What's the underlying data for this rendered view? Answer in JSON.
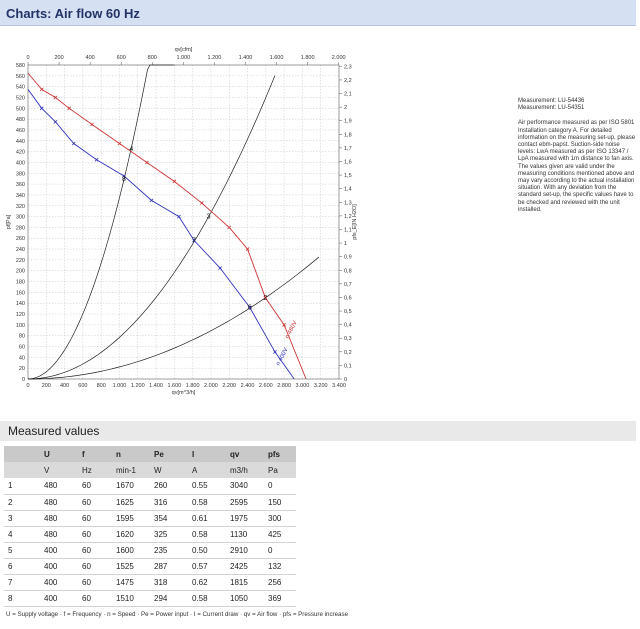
{
  "header": {
    "title": "Charts: Air flow 60 Hz"
  },
  "notes": {
    "measurements": [
      "Measurement: LU-54436",
      "Measurement: LU-54351"
    ],
    "description": "Air performance measured as per ISO 5801 Installation category A. For detailed information on the measuring set-up, please contact ebm-papst. Suction-side noise levels: LwA measured as per ISO 13347 / LpA measured with 1m distance to fan axis. The values given are valid under the measuring conditions mentioned above and may vary according to the actual installation situation. With any deviation from the standard set-up, the specific values have to be checked and reviewed with the unit installed."
  },
  "chart_data": {
    "type": "line",
    "xlabel": "qv[m^3/h]",
    "ylabel": "pf[Pa]",
    "x_top_label": "qv[cfm]",
    "y_right_label": "pfs_E[IN H2O]",
    "xlim": [
      0,
      3400
    ],
    "ylim": [
      0,
      580
    ],
    "x_ticks": [
      "0",
      "200",
      "400",
      "600",
      "800",
      "1.000",
      "1.200",
      "1.400",
      "1.600",
      "1.800",
      "2.000",
      "2.200",
      "2.400",
      "2.600",
      "2.800",
      "3.000",
      "3.200",
      "3.400"
    ],
    "x_top_ticks": [
      "0",
      "200",
      "400",
      "600",
      "800",
      "1.000",
      "1.200",
      "1.400",
      "1.600",
      "1.800",
      "2.000"
    ],
    "y_ticks": [
      "0",
      "20",
      "40",
      "60",
      "80",
      "100",
      "120",
      "140",
      "160",
      "180",
      "200",
      "220",
      "240",
      "260",
      "280",
      "300",
      "320",
      "340",
      "360",
      "380",
      "400",
      "420",
      "440",
      "460",
      "480",
      "500",
      "520",
      "540",
      "560",
      "580"
    ],
    "y_right_ticks": [
      "0",
      "0,1",
      "0,2",
      "0,3",
      "0,4",
      "0,5",
      "0,6",
      "0,7",
      "0,8",
      "0,9",
      "1",
      "1,1",
      "1,2",
      "1,3",
      "1,4",
      "1,5",
      "1,6",
      "1,7",
      "1,8",
      "1,9",
      "2",
      "2,1",
      "2,2",
      "2,3"
    ],
    "series": [
      {
        "name": "n 480V",
        "color": "#cc3333",
        "x": [
          0,
          150,
          300,
          450,
          700,
          1000,
          1300,
          1600,
          1900,
          2200,
          2400,
          2595,
          2800,
          3040
        ],
        "y": [
          565,
          535,
          520,
          500,
          470,
          435,
          400,
          365,
          325,
          280,
          240,
          150,
          100,
          0
        ]
      },
      {
        "name": "n 400V",
        "color": "#3333bb",
        "x": [
          0,
          150,
          300,
          500,
          750,
          1050,
          1350,
          1650,
          1815,
          2100,
          2425,
          2700,
          2910
        ],
        "y": [
          535,
          500,
          475,
          435,
          405,
          375,
          330,
          300,
          256,
          205,
          132,
          50,
          0
        ]
      }
    ],
    "system_curves": [
      {
        "x": [
          0,
          1050,
          1600
        ],
        "y": [
          0,
          369,
          580
        ]
      },
      {
        "x": [
          0,
          1975,
          2700
        ],
        "y": [
          0,
          300,
          580
        ]
      },
      {
        "x": [
          0,
          2595,
          3180
        ],
        "y": [
          0,
          150,
          225
        ]
      }
    ],
    "operating_points": [
      {
        "label": "1",
        "x": 3040,
        "y": 0
      },
      {
        "label": "2",
        "x": 2595,
        "y": 150
      },
      {
        "label": "3",
        "x": 1975,
        "y": 300
      },
      {
        "label": "4",
        "x": 1130,
        "y": 425
      },
      {
        "label": "5",
        "x": 2910,
        "y": 0
      },
      {
        "label": "6",
        "x": 2425,
        "y": 132
      },
      {
        "label": "7",
        "x": 1815,
        "y": 256
      },
      {
        "label": "8",
        "x": 1050,
        "y": 369
      }
    ]
  },
  "measured": {
    "title": "Measured values",
    "headers": [
      "",
      "U",
      "f",
      "n",
      "Pe",
      "I",
      "qv",
      "pfs"
    ],
    "units": [
      "",
      "V",
      "Hz",
      "min-1",
      "W",
      "A",
      "m3/h",
      "Pa"
    ],
    "rows": [
      [
        "1",
        "480",
        "60",
        "1670",
        "260",
        "0.55",
        "3040",
        "0"
      ],
      [
        "2",
        "480",
        "60",
        "1625",
        "316",
        "0.58",
        "2595",
        "150"
      ],
      [
        "3",
        "480",
        "60",
        "1595",
        "354",
        "0.61",
        "1975",
        "300"
      ],
      [
        "4",
        "480",
        "60",
        "1620",
        "325",
        "0.58",
        "1130",
        "425"
      ],
      [
        "5",
        "400",
        "60",
        "1600",
        "235",
        "0.50",
        "2910",
        "0"
      ],
      [
        "6",
        "400",
        "60",
        "1525",
        "287",
        "0.57",
        "2425",
        "132"
      ],
      [
        "7",
        "400",
        "60",
        "1475",
        "318",
        "0.62",
        "1815",
        "256"
      ],
      [
        "8",
        "400",
        "60",
        "1510",
        "294",
        "0.58",
        "1050",
        "369"
      ]
    ],
    "legend": "U = Supply voltage · f = Frequency · n = Speed · Pe = Power input · I = Current draw · qv = Air flow · pfs = Pressure increase"
  }
}
